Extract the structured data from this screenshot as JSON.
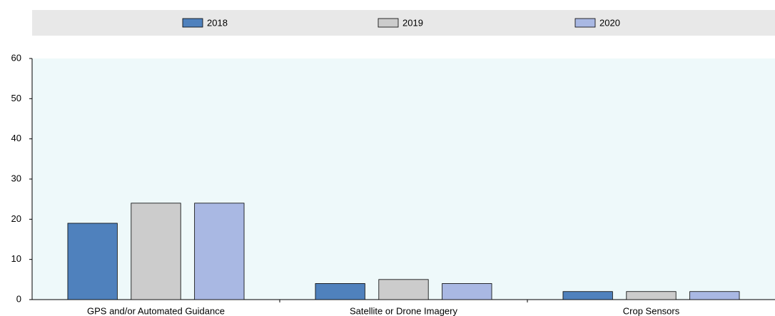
{
  "chart_data": {
    "type": "bar",
    "categories": [
      "GPS and/or Automated Guidance",
      "Satellite or Drone Imagery",
      "Crop Sensors"
    ],
    "series": [
      {
        "name": "2018",
        "color": "#4f81bd",
        "values": [
          19,
          4,
          2
        ]
      },
      {
        "name": "2019",
        "color": "#cccccc",
        "values": [
          24,
          5,
          2
        ]
      },
      {
        "name": "2020",
        "color": "#a9b8e3",
        "values": [
          24,
          4,
          2
        ]
      }
    ],
    "ylim": [
      0,
      60
    ],
    "yticks": [
      0,
      10,
      20,
      30,
      40,
      50,
      60
    ],
    "legend": "top"
  }
}
